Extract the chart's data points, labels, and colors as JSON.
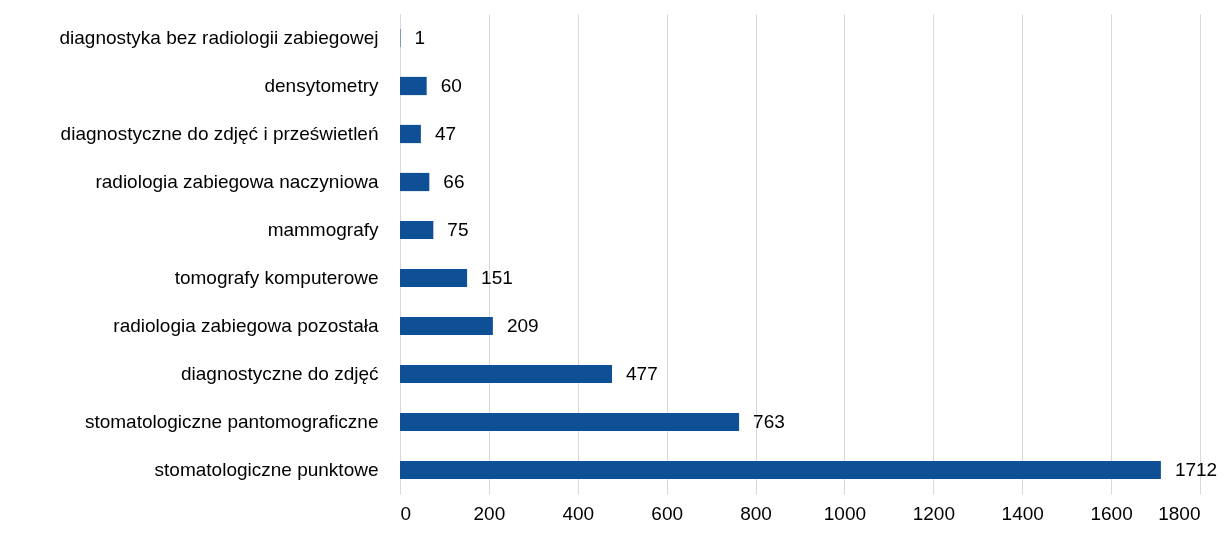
{
  "chart_data": {
    "type": "bar",
    "orientation": "horizontal",
    "categories": [
      "diagnostyka bez radiologii zabiegowej",
      "densytometry",
      "diagnostyczne do zdjęć i prześwietleń",
      "radiologia zabiegowa naczyniowa",
      "mammografy",
      "tomografy komputerowe",
      "radiologia zabiegowa pozostała",
      "diagnostyczne do zdjęć",
      "stomatologiczne pantomograficzne",
      "stomatologiczne punktowe"
    ],
    "values": [
      1,
      60,
      47,
      66,
      75,
      151,
      209,
      477,
      763,
      1712
    ],
    "color": "#0f4f96",
    "xlim": [
      0,
      1800
    ],
    "xticks": [
      0,
      200,
      400,
      600,
      800,
      1000,
      1200,
      1400,
      1600,
      1800
    ],
    "grid": "x",
    "data_labels": true
  }
}
